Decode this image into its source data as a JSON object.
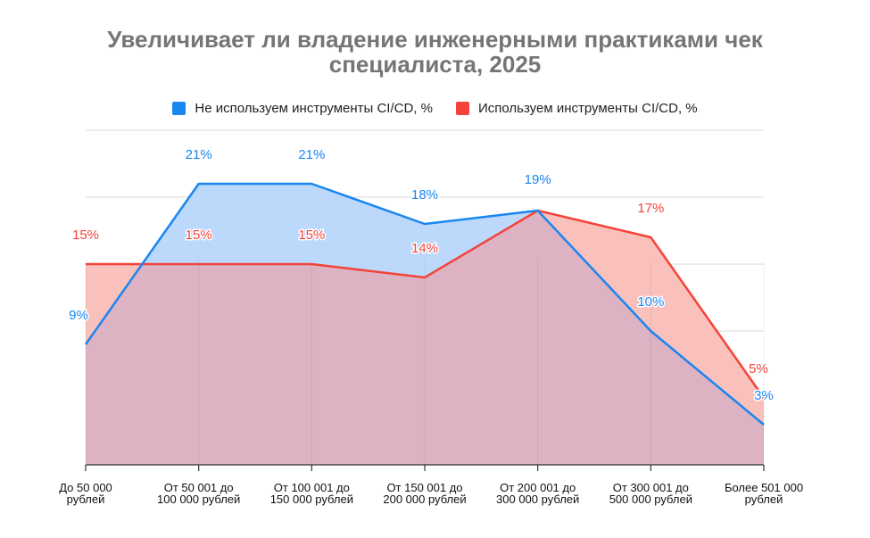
{
  "chart_data": {
    "type": "area",
    "title_lines": [
      "Увеличивает ли владение инженерными практиками чек",
      "специалиста, 2025"
    ],
    "categories": [
      [
        "До 50 000",
        "рублей"
      ],
      [
        "От 50 001 до",
        "100 000 рублей"
      ],
      [
        "От 100 001 до",
        "150 000 рублей"
      ],
      [
        "От 150 001 до",
        "200 000 рублей"
      ],
      [
        "От 200 001 до",
        "300 000 рублей"
      ],
      [
        "От 300 001 до",
        "500 000 рублей"
      ],
      [
        "Более 501 000",
        "рублей"
      ]
    ],
    "series": [
      {
        "name": "Не используем инструменты CI/CD, %",
        "color": "#1a86f0",
        "fill": "#bcd8fb",
        "values": [
          9,
          21,
          21,
          18,
          19,
          10,
          3
        ],
        "labels": [
          "9%",
          "21%",
          "21%",
          "18%",
          "19%",
          "10%",
          "3%"
        ]
      },
      {
        "name": "Используем инструменты CI/CD, %",
        "color": "#f4433a",
        "fill": "#f9c0bc",
        "values": [
          15,
          15,
          15,
          14,
          19,
          17,
          5
        ],
        "labels": [
          "15%",
          "15%",
          "15%",
          "14%",
          "19%",
          "17%",
          "5%"
        ]
      }
    ],
    "overlap_fill": "#ddb2c2",
    "ylim": [
      0,
      25
    ],
    "grid": true,
    "legend_position": "top"
  }
}
